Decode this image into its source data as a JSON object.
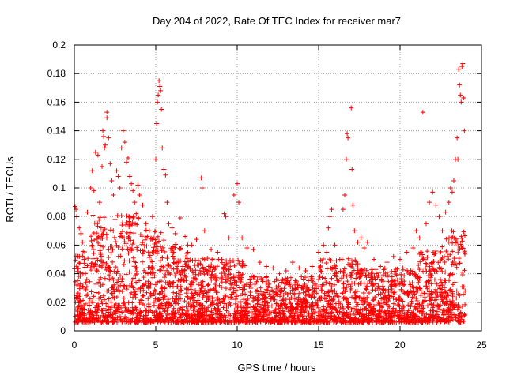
{
  "chart_data": {
    "type": "scatter",
    "title": "Day 204 of 2022, Rate Of TEC Index for receiver mar7",
    "xlabel": "GPS time / hours",
    "ylabel": "ROTI / TECUs",
    "xlim": [
      0,
      25
    ],
    "ylim": [
      0,
      0.2
    ],
    "xticks": [
      "0",
      "5",
      "10",
      "15",
      "20",
      "25"
    ],
    "yticks": [
      "0",
      "0.02",
      "0.04",
      "0.06",
      "0.08",
      "0.1",
      "0.12",
      "0.14",
      "0.16",
      "0.18",
      "0.2"
    ],
    "grid": true,
    "marker": "+",
    "series_color": "#ff0000",
    "series": [
      {
        "points": [
          [
            0.05,
            0.087
          ],
          [
            0.1,
            0.085
          ],
          [
            0.15,
            0.08
          ],
          [
            0.3,
            0.072
          ],
          [
            0.4,
            0.068
          ],
          [
            0.5,
            0.062
          ],
          [
            0.6,
            0.05
          ],
          [
            0.8,
            0.083
          ],
          [
            1.0,
            0.1
          ],
          [
            1.1,
            0.112
          ],
          [
            1.2,
            0.098
          ],
          [
            1.3,
            0.125
          ],
          [
            1.45,
            0.123
          ],
          [
            1.55,
            0.09
          ],
          [
            1.7,
            0.115
          ],
          [
            1.75,
            0.14
          ],
          [
            1.8,
            0.136
          ],
          [
            1.85,
            0.128
          ],
          [
            1.9,
            0.13
          ],
          [
            2.0,
            0.153
          ],
          [
            2.0,
            0.149
          ],
          [
            2.1,
            0.135
          ],
          [
            2.2,
            0.117
          ],
          [
            2.3,
            0.105
          ],
          [
            2.4,
            0.095
          ],
          [
            2.5,
            0.078
          ],
          [
            2.6,
            0.112
          ],
          [
            2.7,
            0.108
          ],
          [
            2.8,
            0.1
          ],
          [
            2.9,
            0.128
          ],
          [
            3.0,
            0.14
          ],
          [
            3.1,
            0.132
          ],
          [
            3.2,
            0.118
          ],
          [
            3.3,
            0.121
          ],
          [
            3.4,
            0.108
          ],
          [
            3.5,
            0.103
          ],
          [
            3.6,
            0.098
          ],
          [
            3.7,
            0.09
          ],
          [
            3.8,
            0.082
          ],
          [
            3.9,
            0.102
          ],
          [
            4.0,
            0.095
          ],
          [
            4.2,
            0.088
          ],
          [
            4.4,
            0.075
          ],
          [
            4.6,
            0.07
          ],
          [
            4.8,
            0.08
          ],
          [
            5.0,
            0.12
          ],
          [
            5.05,
            0.145
          ],
          [
            5.1,
            0.16
          ],
          [
            5.15,
            0.165
          ],
          [
            5.2,
            0.175
          ],
          [
            5.25,
            0.171
          ],
          [
            5.3,
            0.168
          ],
          [
            5.35,
            0.155
          ],
          [
            5.4,
            0.128
          ],
          [
            5.5,
            0.113
          ],
          [
            5.6,
            0.109
          ],
          [
            5.7,
            0.09
          ],
          [
            5.8,
            0.075
          ],
          [
            6.0,
            0.072
          ],
          [
            6.2,
            0.068
          ],
          [
            6.5,
            0.079
          ],
          [
            6.8,
            0.066
          ],
          [
            7.2,
            0.06
          ],
          [
            7.5,
            0.064
          ],
          [
            7.8,
            0.107
          ],
          [
            7.85,
            0.1
          ],
          [
            8.0,
            0.07
          ],
          [
            8.4,
            0.057
          ],
          [
            8.8,
            0.055
          ],
          [
            9.2,
            0.082
          ],
          [
            9.3,
            0.08
          ],
          [
            9.5,
            0.065
          ],
          [
            9.8,
            0.095
          ],
          [
            10.0,
            0.103
          ],
          [
            10.1,
            0.09
          ],
          [
            10.3,
            0.065
          ],
          [
            10.6,
            0.058
          ],
          [
            11.0,
            0.057
          ],
          [
            11.4,
            0.048
          ],
          [
            11.8,
            0.045
          ],
          [
            12.2,
            0.044
          ],
          [
            12.6,
            0.04
          ],
          [
            13.0,
            0.042
          ],
          [
            13.4,
            0.048
          ],
          [
            13.8,
            0.044
          ],
          [
            14.2,
            0.042
          ],
          [
            14.6,
            0.045
          ],
          [
            15.0,
            0.055
          ],
          [
            15.3,
            0.06
          ],
          [
            15.5,
            0.055
          ],
          [
            15.6,
            0.072
          ],
          [
            15.7,
            0.08
          ],
          [
            15.8,
            0.085
          ],
          [
            16.0,
            0.06
          ],
          [
            16.3,
            0.05
          ],
          [
            16.5,
            0.085
          ],
          [
            16.6,
            0.095
          ],
          [
            16.7,
            0.12
          ],
          [
            16.75,
            0.138
          ],
          [
            16.8,
            0.135
          ],
          [
            17.0,
            0.156
          ],
          [
            17.05,
            0.113
          ],
          [
            17.1,
            0.088
          ],
          [
            17.2,
            0.07
          ],
          [
            17.4,
            0.062
          ],
          [
            17.6,
            0.065
          ],
          [
            17.8,
            0.058
          ],
          [
            18.0,
            0.062
          ],
          [
            18.4,
            0.05
          ],
          [
            18.8,
            0.045
          ],
          [
            19.2,
            0.048
          ],
          [
            19.6,
            0.052
          ],
          [
            20.0,
            0.05
          ],
          [
            20.4,
            0.055
          ],
          [
            20.8,
            0.058
          ],
          [
            21.0,
            0.07
          ],
          [
            21.2,
            0.065
          ],
          [
            21.4,
            0.153
          ],
          [
            21.6,
            0.075
          ],
          [
            21.8,
            0.09
          ],
          [
            22.0,
            0.097
          ],
          [
            22.2,
            0.088
          ],
          [
            22.4,
            0.08
          ],
          [
            22.6,
            0.07
          ],
          [
            22.8,
            0.083
          ],
          [
            23.0,
            0.09
          ],
          [
            23.1,
            0.1
          ],
          [
            23.2,
            0.097
          ],
          [
            23.3,
            0.105
          ],
          [
            23.4,
            0.12
          ],
          [
            23.5,
            0.135
          ],
          [
            23.55,
            0.12
          ],
          [
            23.6,
            0.183
          ],
          [
            23.65,
            0.172
          ],
          [
            23.7,
            0.165
          ],
          [
            23.75,
            0.16
          ],
          [
            23.8,
            0.185
          ],
          [
            23.85,
            0.187
          ],
          [
            23.9,
            0.163
          ],
          [
            23.95,
            0.14
          ]
        ]
      }
    ]
  }
}
